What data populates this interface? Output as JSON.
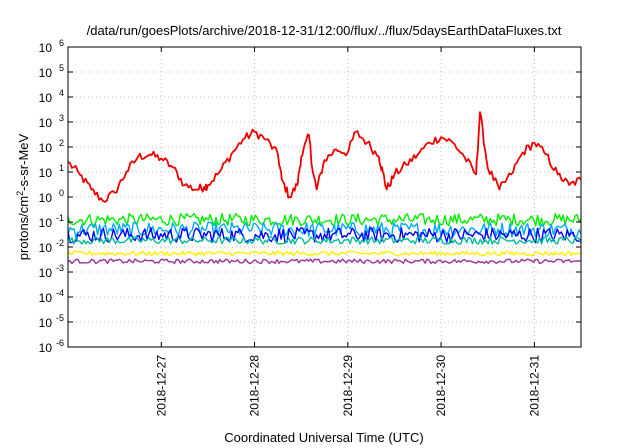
{
  "chart_data": {
    "type": "line",
    "title": "/data/run/goesPlots/archive/2018-12-31/12:00/flux/../flux/5daysEarthDataFluxes.txt",
    "xlabel": "Coordinated Universal Time (UTC)",
    "ylabel": "protons/cm2-s-sr-MeV",
    "ylabel_parts": {
      "base": "protons/cm",
      "sup": "2",
      "rest": "-s-sr-MeV"
    },
    "y_scale": "log",
    "ylim": [
      1e-06,
      1000000.0
    ],
    "y_ticks": [
      {
        "exp": "-6"
      },
      {
        "exp": "-5"
      },
      {
        "exp": "-4"
      },
      {
        "exp": "-3"
      },
      {
        "exp": "-2"
      },
      {
        "exp": "-1"
      },
      {
        "exp": "0"
      },
      {
        "exp": "1"
      },
      {
        "exp": "2"
      },
      {
        "exp": "3"
      },
      {
        "exp": "4"
      },
      {
        "exp": "5"
      },
      {
        "exp": "6"
      }
    ],
    "y_tick_base": "10",
    "xlim": [
      "2018-12-26T00:00",
      "2018-12-31T12:00"
    ],
    "x_ticks": [
      "2018-12-27",
      "2018-12-28",
      "2018-12-29",
      "2018-12-30",
      "2018-12-31"
    ],
    "grid": true,
    "series": [
      {
        "color": "#ee0000",
        "x": [
          "2018-12-26T00:00",
          "2018-12-26T03:00",
          "2018-12-26T06:00",
          "2018-12-26T09:00",
          "2018-12-26T12:00",
          "2018-12-26T15:00",
          "2018-12-26T18:00",
          "2018-12-26T21:00",
          "2018-12-27T00:00",
          "2018-12-27T03:00",
          "2018-12-27T06:00",
          "2018-12-27T09:00",
          "2018-12-27T11:00",
          "2018-12-27T12:00",
          "2018-12-27T15:00",
          "2018-12-27T18:00",
          "2018-12-27T21:00",
          "2018-12-28T00:00",
          "2018-12-28T03:00",
          "2018-12-28T06:00",
          "2018-12-28T07:00",
          "2018-12-28T09:00",
          "2018-12-28T11:00",
          "2018-12-28T12:00",
          "2018-12-28T14:00",
          "2018-12-28T15:00",
          "2018-12-28T16:00",
          "2018-12-28T18:00",
          "2018-12-28T21:00",
          "2018-12-29T00:00",
          "2018-12-29T02:00",
          "2018-12-29T05:00",
          "2018-12-29T08:00",
          "2018-12-29T09:00",
          "2018-12-29T10:00",
          "2018-12-29T12:00",
          "2018-12-29T15:00",
          "2018-12-29T18:00",
          "2018-12-29T21:00",
          "2018-12-30T00:00",
          "2018-12-30T03:00",
          "2018-12-30T06:00",
          "2018-12-30T09:00",
          "2018-12-30T10:00",
          "2018-12-30T12:00",
          "2018-12-30T15:00",
          "2018-12-30T18:00",
          "2018-12-30T21:00",
          "2018-12-31T00:00",
          "2018-12-31T03:00",
          "2018-12-31T06:00",
          "2018-12-31T09:00",
          "2018-12-31T12:00"
        ],
        "y": [
          25,
          8,
          2,
          0.7,
          1.5,
          10,
          40,
          50,
          35,
          15,
          3,
          2,
          2.5,
          3,
          10,
          50,
          200,
          400,
          200,
          50,
          5,
          1,
          3,
          40,
          300,
          10,
          2,
          30,
          80,
          60,
          400,
          150,
          40,
          10,
          2,
          8,
          20,
          50,
          150,
          250,
          150,
          40,
          8,
          2500,
          15,
          2,
          8,
          60,
          150,
          50,
          8,
          3,
          5
        ]
      },
      {
        "color": "#00ee00",
        "x": [
          "2018-12-26T00:00",
          "2018-12-31T12:00"
        ],
        "y": [
          0.12,
          0.12
        ],
        "band": [
          0.07,
          0.22
        ]
      },
      {
        "color": "#00aaff",
        "x": [
          "2018-12-26T00:00",
          "2018-12-31T12:00"
        ],
        "y": [
          0.05,
          0.05
        ],
        "band": [
          0.025,
          0.1
        ]
      },
      {
        "color": "#0000ff",
        "x": [
          "2018-12-26T00:00",
          "2018-12-31T12:00"
        ],
        "y": [
          0.03,
          0.03
        ],
        "band": [
          0.015,
          0.06
        ]
      },
      {
        "color": "#00bb99",
        "x": [
          "2018-12-26T00:00",
          "2018-12-31T12:00"
        ],
        "y": [
          0.018,
          0.018
        ],
        "band": [
          0.013,
          0.026
        ]
      },
      {
        "color": "#ffee00",
        "x": [
          "2018-12-26T00:00",
          "2018-12-31T12:00"
        ],
        "y": [
          0.0055,
          0.0055
        ],
        "band": [
          0.0045,
          0.0068
        ]
      },
      {
        "color": "#993399",
        "x": [
          "2018-12-26T00:00",
          "2018-12-31T12:00"
        ],
        "y": [
          0.0027,
          0.0027
        ],
        "band": [
          0.0022,
          0.0033
        ]
      }
    ]
  }
}
